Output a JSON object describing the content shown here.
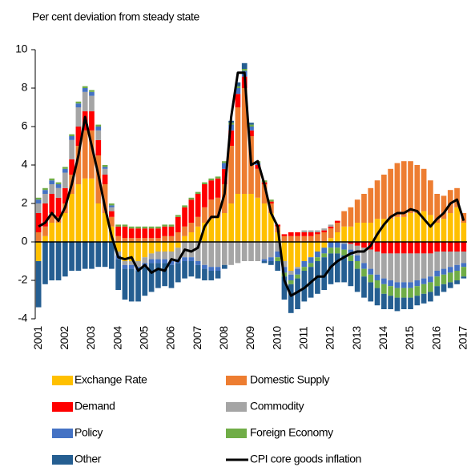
{
  "chart_data": {
    "type": "bar",
    "subtitle": "Per cent deviation from steady state",
    "categories": [
      "2001",
      null,
      null,
      null,
      "2002",
      null,
      null,
      null,
      "2003",
      null,
      null,
      null,
      "2004",
      null,
      null,
      null,
      "2005",
      null,
      null,
      null,
      "2006",
      null,
      null,
      null,
      "2007",
      null,
      null,
      null,
      "2008",
      null,
      null,
      null,
      "2009",
      null,
      null,
      null,
      "2010",
      null,
      null,
      null,
      "2011",
      null,
      null,
      null,
      "2012",
      null,
      null,
      null,
      "2013",
      null,
      null,
      null,
      "2014",
      null,
      null,
      null,
      "2015",
      null,
      null,
      null,
      "2016",
      null,
      null,
      null,
      "2017"
    ],
    "ylim": [
      -4,
      10
    ],
    "yticks": [
      -4,
      -2,
      0,
      2,
      4,
      6,
      8,
      10
    ],
    "series": [
      {
        "name": "Exchange Rate",
        "color": "#ffc000",
        "values": [
          -1,
          0.3,
          1,
          1,
          1.5,
          2.5,
          3,
          3.3,
          3.3,
          2,
          1.5,
          0.8,
          -0.5,
          -1,
          -1,
          -1,
          -0.8,
          -0.6,
          -0.5,
          -0.5,
          -0.5,
          -0.3,
          0.3,
          0.5,
          0.8,
          1,
          1.2,
          1.3,
          1.5,
          2,
          2.5,
          2.5,
          2.5,
          2.3,
          2,
          1.5,
          0.5,
          -1,
          -1.5,
          -1.3,
          -1,
          -0.8,
          -0.5,
          -0.3,
          0.2,
          0.5,
          0.8,
          0.8,
          1,
          1,
          1,
          1.2,
          1.2,
          1.2,
          1.3,
          1.3,
          1.5,
          1.5,
          1.6,
          1.4,
          1,
          1.2,
          1.5,
          1.8,
          1
        ]
      },
      {
        "name": "Domestic Supply",
        "color": "#ed7d31",
        "values": [
          0.5,
          0.5,
          0.5,
          0.3,
          0.5,
          1,
          2,
          2.5,
          2.5,
          2.5,
          1.5,
          0.5,
          0.3,
          0.2,
          0.2,
          0.2,
          0.2,
          0.2,
          0.2,
          0.3,
          0.3,
          0.5,
          0.5,
          0.5,
          0.5,
          0.8,
          1,
          1,
          1.5,
          3,
          4.5,
          5.5,
          3,
          1.5,
          1,
          0.5,
          0.3,
          0.3,
          0.3,
          0.3,
          0.3,
          0.3,
          0.4,
          0.5,
          0.5,
          0.5,
          0.8,
          1,
          1.2,
          1.5,
          1.8,
          2,
          2.3,
          2.6,
          2.8,
          2.9,
          2.7,
          2.5,
          2.2,
          1.8,
          1.5,
          1.2,
          1.2,
          1,
          0.5
        ]
      },
      {
        "name": "Demand",
        "color": "#ff0000",
        "values": [
          1,
          1.2,
          1,
          1,
          0.8,
          0.8,
          1,
          1,
          1,
          0.8,
          0.5,
          0.3,
          0.5,
          0.6,
          0.5,
          0.5,
          0.5,
          0.5,
          0.5,
          0.5,
          0.5,
          0.8,
          1,
          1.2,
          1.2,
          1.2,
          1,
          1,
          0.8,
          0.8,
          0.7,
          0.6,
          0.3,
          0.2,
          0.1,
          0.1,
          0.1,
          0.1,
          0.2,
          0.2,
          0.2,
          0.2,
          0.1,
          0.1,
          0.1,
          0.1,
          0,
          -0.1,
          -0.2,
          -0.3,
          -0.4,
          -0.5,
          -0.6,
          -0.6,
          -0.6,
          -0.6,
          -0.6,
          -0.6,
          -0.6,
          -0.6,
          -0.5,
          -0.5,
          -0.5,
          -0.5,
          -0.5
        ]
      },
      {
        "name": "Commodity",
        "color": "#a5a5a5",
        "values": [
          0.5,
          0.5,
          0.5,
          0.5,
          0.8,
          1,
          1,
          1,
          0.8,
          0.5,
          0.3,
          0.2,
          -0.2,
          -0.2,
          -0.2,
          -0.3,
          -0.3,
          -0.3,
          -0.4,
          -0.4,
          -0.5,
          -0.6,
          -0.8,
          -0.8,
          -1,
          -1.2,
          -1.3,
          -1.3,
          -1.2,
          -1.2,
          -1.1,
          -1,
          -1,
          -1,
          -0.9,
          -0.8,
          -0.5,
          -0.3,
          -0.2,
          -0.1,
          0.1,
          0.1,
          0.1,
          0.1,
          0.1,
          0,
          -0.1,
          -0.3,
          -0.5,
          -0.8,
          -1,
          -1.2,
          -1.3,
          -1.4,
          -1.5,
          -1.5,
          -1.5,
          -1.4,
          -1.3,
          -1.2,
          -1,
          -0.9,
          -0.8,
          -0.7,
          -0.6
        ]
      },
      {
        "name": "Policy",
        "color": "#4472c4",
        "values": [
          0.2,
          0.2,
          0.2,
          0.2,
          0.2,
          0.2,
          0.2,
          0.2,
          0.2,
          0.2,
          0.1,
          0.1,
          -0.2,
          -0.2,
          -0.2,
          -0.2,
          -0.2,
          -0.2,
          -0.2,
          -0.2,
          -0.2,
          -0.2,
          -0.2,
          -0.2,
          -0.2,
          -0.2,
          -0.2,
          -0.2,
          0.3,
          0.3,
          0.3,
          0.3,
          0.2,
          0.1,
          -0.1,
          -0.2,
          -0.3,
          -0.3,
          -0.3,
          -0.3,
          -0.3,
          -0.3,
          -0.3,
          -0.3,
          -0.3,
          -0.3,
          -0.3,
          -0.3,
          -0.3,
          -0.3,
          -0.3,
          -0.3,
          -0.3,
          -0.3,
          -0.3,
          -0.3,
          -0.3,
          -0.3,
          -0.3,
          -0.3,
          -0.3,
          -0.3,
          -0.3,
          -0.3,
          -0.2
        ]
      },
      {
        "name": "Foreign Economy",
        "color": "#70ad47",
        "values": [
          0.1,
          0.1,
          0.1,
          0.1,
          0.1,
          0.1,
          0.1,
          0.1,
          0.1,
          0.1,
          0.1,
          0.1,
          0.1,
          0.1,
          0.1,
          0.1,
          0.1,
          0.1,
          0.1,
          0.1,
          0.1,
          0.1,
          0.1,
          0.1,
          0.1,
          0.1,
          0.1,
          0.1,
          0.1,
          0.1,
          0.1,
          0.1,
          0.1,
          0.1,
          0.1,
          0.1,
          -0.2,
          -0.2,
          -0.2,
          -0.2,
          -0.2,
          -0.2,
          -0.2,
          -0.2,
          -0.3,
          -0.3,
          -0.3,
          -0.3,
          -0.4,
          -0.4,
          -0.4,
          -0.4,
          -0.5,
          -0.5,
          -0.5,
          -0.5,
          -0.5,
          -0.5,
          -0.5,
          -0.5,
          -0.5,
          -0.5,
          -0.5,
          -0.5,
          -0.5
        ]
      },
      {
        "name": "Other",
        "color": "#255e91",
        "values": [
          -2.4,
          -2.2,
          -2,
          -2,
          -1.8,
          -1.5,
          -1.5,
          -1.4,
          -1.4,
          -1.3,
          -1.3,
          -1.4,
          -1.6,
          -1.6,
          -1.7,
          -1.6,
          -1.5,
          -1.5,
          -1.3,
          -1.2,
          -1.2,
          -1,
          -0.9,
          -0.8,
          -0.7,
          -0.6,
          -0.5,
          -0.4,
          -0.2,
          0.1,
          0.2,
          0.3,
          0.1,
          0,
          -0.1,
          -0.2,
          -0.5,
          -1.2,
          -1.5,
          -1.6,
          -1.6,
          -1.6,
          -1.7,
          -1.7,
          -1.6,
          -1.5,
          -1.4,
          -1.3,
          -1.2,
          -1.1,
          -1,
          -0.9,
          -0.8,
          -0.7,
          -0.7,
          -0.6,
          -0.6,
          -0.5,
          -0.5,
          -0.5,
          -0.5,
          -0.4,
          -0.3,
          -0.2,
          -0.1
        ]
      },
      {
        "name": "CPI core goods inflation",
        "color": "#000000",
        "style": "line",
        "values": [
          0.8,
          1,
          1.5,
          1.1,
          1.8,
          3,
          4.5,
          6.5,
          5,
          3.5,
          1.8,
          0.3,
          -0.8,
          -0.9,
          -0.8,
          -1.5,
          -1.2,
          -1.6,
          -1.4,
          -1.5,
          -0.9,
          -1,
          -0.4,
          -0.5,
          -0.3,
          0.8,
          1.3,
          1.3,
          2.5,
          6.5,
          8.8,
          8.8,
          4,
          4.2,
          3,
          1.5,
          0.8,
          -2,
          -2.8,
          -2.6,
          -2.4,
          -2.1,
          -1.8,
          -1.8,
          -1.3,
          -1,
          -0.8,
          -0.6,
          -0.5,
          -0.5,
          -0.2,
          0.4,
          0.9,
          1.3,
          1.5,
          1.5,
          1.7,
          1.6,
          1.2,
          0.8,
          1.2,
          1.5,
          2,
          2.2,
          1.1
        ]
      }
    ]
  }
}
